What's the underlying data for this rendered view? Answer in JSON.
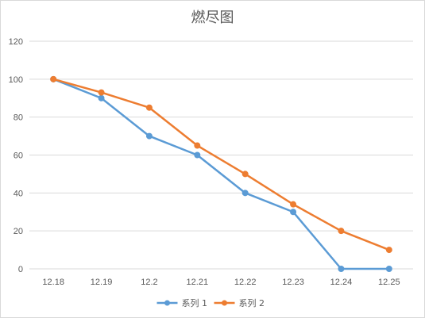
{
  "chart_data": {
    "type": "line",
    "title": "燃尽图",
    "categories": [
      "12.18",
      "12.19",
      "12.2",
      "12.21",
      "12.22",
      "12.23",
      "12.24",
      "12.25"
    ],
    "series": [
      {
        "name": "系列 1",
        "values": [
          100,
          90,
          70,
          60,
          40,
          30,
          0,
          0
        ],
        "color": "#5b9bd5"
      },
      {
        "name": "系列 2",
        "values": [
          100,
          93,
          85,
          65,
          50,
          34,
          20,
          10
        ],
        "color": "#ed7d31"
      }
    ],
    "yticks": [
      0,
      20,
      40,
      60,
      80,
      100,
      120
    ],
    "ylim": [
      0,
      120
    ],
    "xlabel": "",
    "ylabel": "",
    "grid": "horizontal",
    "legend": "bottom"
  }
}
